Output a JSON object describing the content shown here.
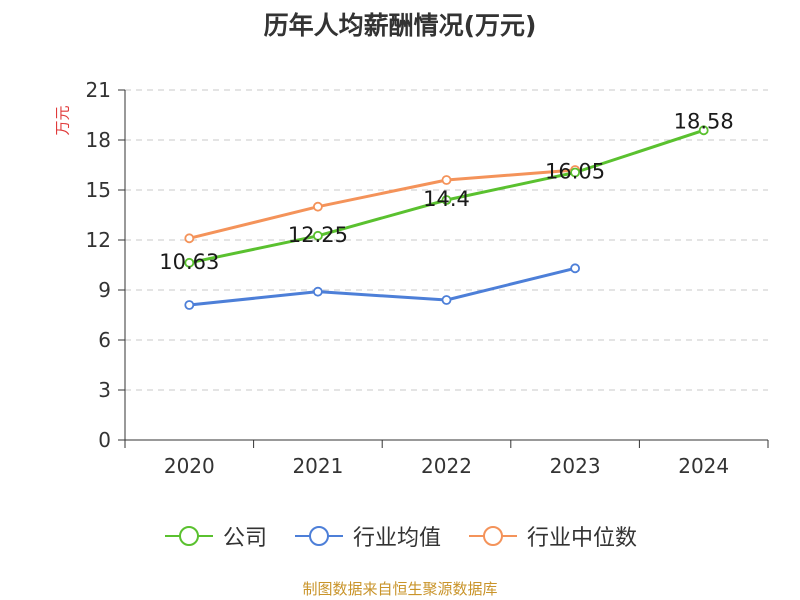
{
  "chart_data": {
    "type": "line",
    "title": "历年人均薪酬情况(万元)",
    "ylabel": "万元",
    "categories": [
      "2020",
      "2021",
      "2022",
      "2023",
      "2024"
    ],
    "ylim": [
      0,
      21
    ],
    "yticks": [
      0,
      3,
      6,
      9,
      12,
      15,
      18,
      21
    ],
    "grid": true,
    "legend_position": "bottom",
    "series": [
      {
        "name": "公司",
        "values": [
          10.63,
          12.25,
          14.4,
          16.05,
          18.58
        ],
        "color": "#5ac12f",
        "labels": [
          "10.63",
          "12.25",
          "14.4",
          "16.05",
          "18.58"
        ]
      },
      {
        "name": "行业均值",
        "values": [
          8.1,
          8.9,
          8.4,
          10.3,
          null
        ],
        "color": "#4d7fd8"
      },
      {
        "name": "行业中位数",
        "values": [
          12.1,
          14.0,
          15.6,
          16.2,
          null
        ],
        "color": "#f4935a"
      }
    ]
  },
  "source": "制图数据来自恒生聚源数据库"
}
